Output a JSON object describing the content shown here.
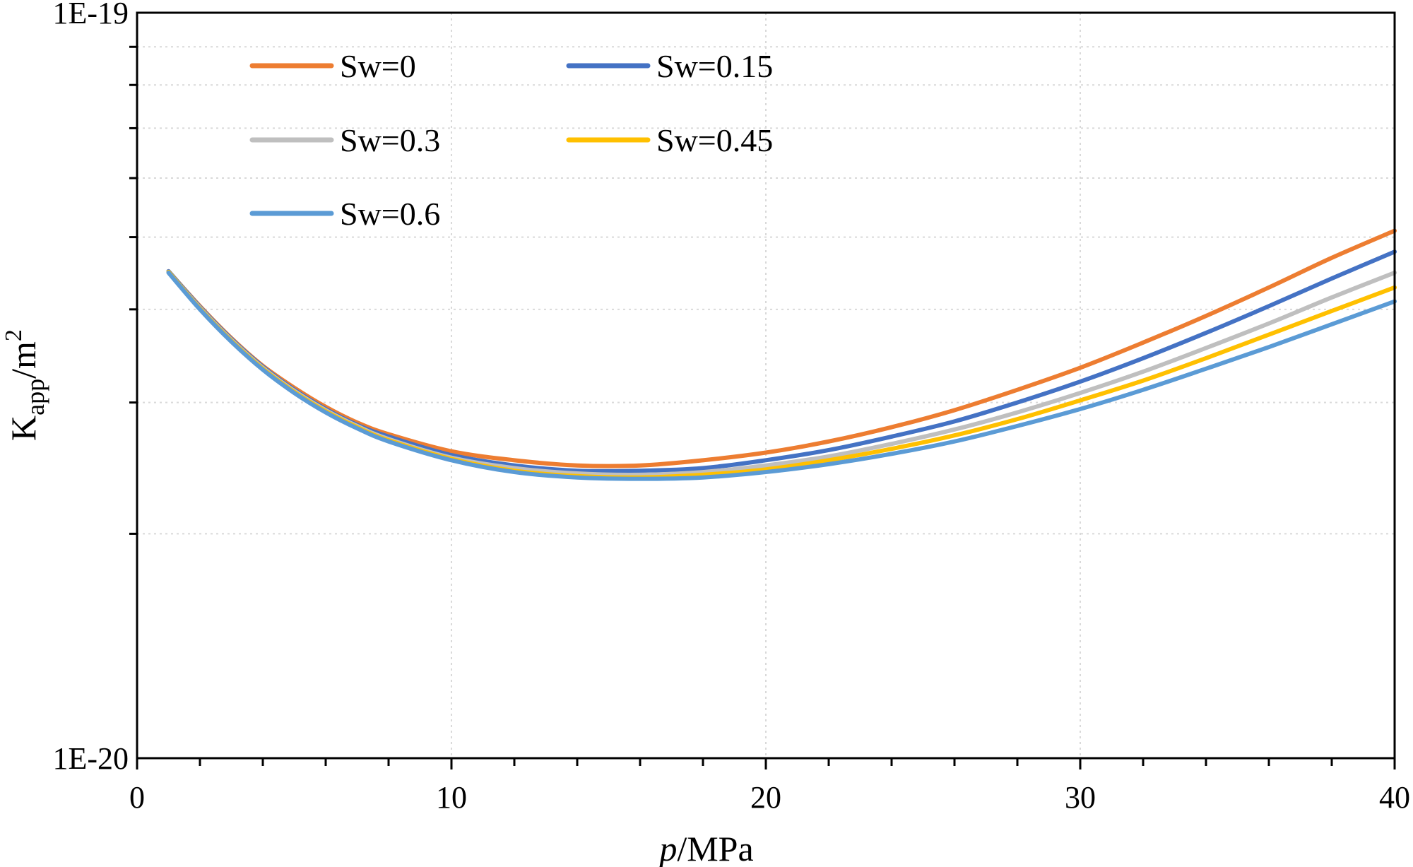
{
  "chart_data": {
    "type": "line",
    "title": "",
    "xlabel_italic": "p",
    "xlabel_rest": "/MPa",
    "ylabel_base": "K",
    "ylabel_sub": "app",
    "ylabel_mid": "/m",
    "ylabel_sup": "2",
    "xlim": [
      0,
      40
    ],
    "ylim": [
      1e-20,
      1e-19
    ],
    "yscale": "log",
    "x_ticks": [
      0,
      10,
      20,
      30,
      40
    ],
    "x_tick_labels": [
      "0",
      "10",
      "20",
      "30",
      "40"
    ],
    "y_tick_labels": [
      "1E-20",
      "1E-19"
    ],
    "grid": true,
    "legend_position": "top-left",
    "series": [
      {
        "name": "Sw=0",
        "color": "#ED7D31",
        "x": [
          1,
          2,
          3,
          4,
          5,
          6,
          7,
          8,
          10,
          12,
          14,
          16,
          18,
          20,
          22,
          24,
          26,
          28,
          30,
          32,
          34,
          36,
          38,
          40
        ],
        "y": [
          4.5e-20,
          4.04e-20,
          3.66e-20,
          3.36e-20,
          3.14e-20,
          2.96e-20,
          2.82e-20,
          2.72e-20,
          2.58e-20,
          2.51e-20,
          2.47e-20,
          2.47e-20,
          2.51e-20,
          2.57e-20,
          2.66e-20,
          2.78e-20,
          2.93e-20,
          3.12e-20,
          3.34e-20,
          3.61e-20,
          3.92e-20,
          4.28e-20,
          4.69e-20,
          5.1e-20
        ]
      },
      {
        "name": "Sw=0.15",
        "color": "#4472C4",
        "x": [
          1,
          2,
          3,
          4,
          5,
          6,
          7,
          8,
          10,
          12,
          14,
          16,
          18,
          20,
          22,
          24,
          26,
          28,
          30,
          32,
          34,
          36,
          38,
          40
        ],
        "y": [
          4.5e-20,
          4.03e-20,
          3.65e-20,
          3.35e-20,
          3.12e-20,
          2.94e-20,
          2.8e-20,
          2.7e-20,
          2.55e-20,
          2.47e-20,
          2.43e-20,
          2.43e-20,
          2.45e-20,
          2.51e-20,
          2.59e-20,
          2.7e-20,
          2.83e-20,
          3e-20,
          3.2e-20,
          3.44e-20,
          3.72e-20,
          4.04e-20,
          4.4e-20,
          4.78e-20
        ]
      },
      {
        "name": "Sw=0.3",
        "color": "#BFBFBF",
        "x": [
          1,
          2,
          3,
          4,
          5,
          6,
          7,
          8,
          10,
          12,
          14,
          16,
          18,
          20,
          22,
          24,
          26,
          28,
          30,
          32,
          34,
          36,
          38,
          40
        ],
        "y": [
          4.49e-20,
          4.02e-20,
          3.64e-20,
          3.34e-20,
          3.11e-20,
          2.93e-20,
          2.79e-20,
          2.68e-20,
          2.53e-20,
          2.45e-20,
          2.41e-20,
          2.4e-20,
          2.42e-20,
          2.47e-20,
          2.54e-20,
          2.64e-20,
          2.76e-20,
          2.91e-20,
          3.09e-20,
          3.3e-20,
          3.55e-20,
          3.83e-20,
          4.15e-20,
          4.48e-20
        ]
      },
      {
        "name": "Sw=0.45",
        "color": "#FFC000",
        "x": [
          1,
          2,
          3,
          4,
          5,
          6,
          7,
          8,
          10,
          12,
          14,
          16,
          18,
          20,
          22,
          24,
          26,
          28,
          30,
          32,
          34,
          36,
          38,
          40
        ],
        "y": [
          4.49e-20,
          4.01e-20,
          3.63e-20,
          3.33e-20,
          3.1e-20,
          2.92e-20,
          2.78e-20,
          2.67e-20,
          2.52e-20,
          2.43e-20,
          2.39e-20,
          2.38e-20,
          2.4e-20,
          2.44e-20,
          2.51e-20,
          2.6e-20,
          2.71e-20,
          2.85e-20,
          3.02e-20,
          3.21e-20,
          3.44e-20,
          3.7e-20,
          3.98e-20,
          4.28e-20
        ]
      },
      {
        "name": "Sw=0.6",
        "color": "#5B9BD5",
        "x": [
          1,
          2,
          3,
          4,
          5,
          6,
          7,
          8,
          10,
          12,
          14,
          16,
          18,
          20,
          22,
          24,
          26,
          28,
          30,
          32,
          34,
          36,
          38,
          40
        ],
        "y": [
          4.48e-20,
          4e-20,
          3.62e-20,
          3.32e-20,
          3.09e-20,
          2.91e-20,
          2.77e-20,
          2.66e-20,
          2.51e-20,
          2.42e-20,
          2.38e-20,
          2.37e-20,
          2.38e-20,
          2.42e-20,
          2.48e-20,
          2.56e-20,
          2.66e-20,
          2.79e-20,
          2.94e-20,
          3.12e-20,
          3.33e-20,
          3.56e-20,
          3.82e-20,
          4.1e-20
        ]
      }
    ]
  }
}
